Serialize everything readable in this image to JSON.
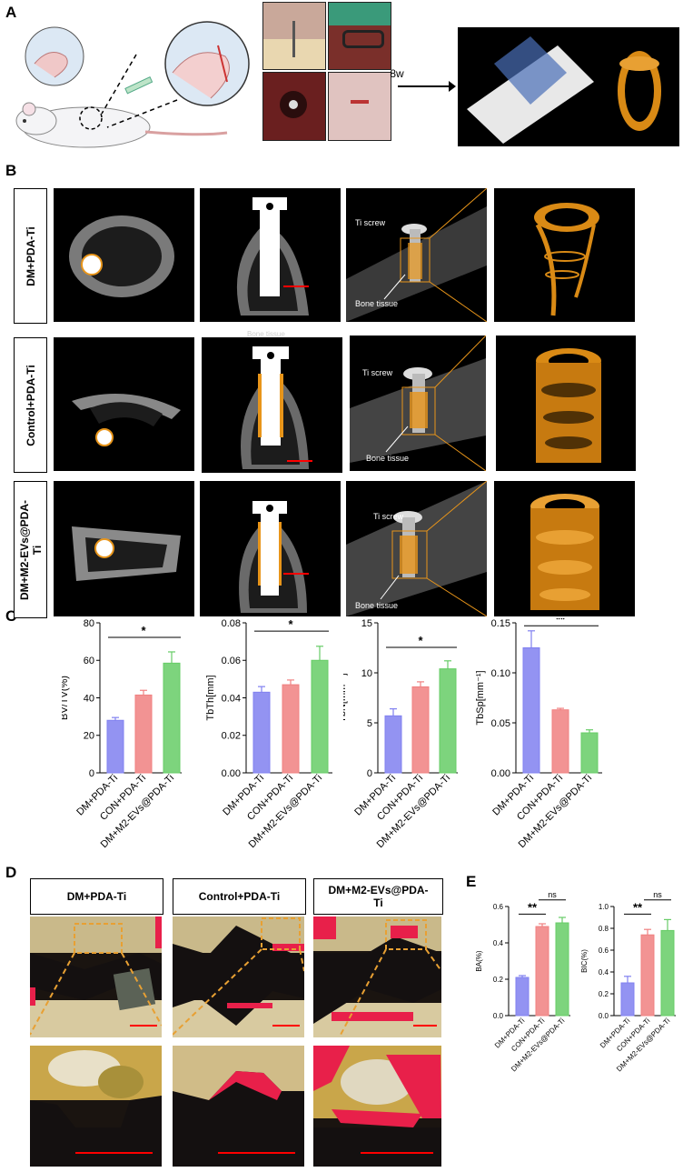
{
  "panels": {
    "a": "A",
    "b": "B",
    "c": "C",
    "d": "D",
    "e": "E"
  },
  "panel_a": {
    "time_label": "8w"
  },
  "panel_b": {
    "rows": [
      "DM+PDA-Ti",
      "Control+PDA-Ti",
      "DM+M2-EVs@PDA-Ti"
    ],
    "ti_screw_label": "Ti screw",
    "bone_tissue_label": "Bone tissue",
    "faint_label": "Bone tissue"
  },
  "panel_d": {
    "headers": [
      "DM+PDA-Ti",
      "Control+PDA-Ti",
      "DM+M2-EVs@PDA-Ti"
    ]
  },
  "colors": {
    "dm": "#8080f0",
    "con": "#f08080",
    "m2": "#66cc66",
    "bone_orange": "#e8951a",
    "scale_red": "#ff0000",
    "stain_red": "#e8204a"
  },
  "chart_data": [
    {
      "type": "bar",
      "panel": "C",
      "categories": [
        "DM+PDA-Ti",
        "CON+PDA-Ti",
        "DM+M2-EVs@PDA-Ti"
      ],
      "values": [
        28,
        41.5,
        58.5
      ],
      "errors": [
        1.5,
        2.5,
        6
      ],
      "ylabel": "BV/TV(%)",
      "ylim": [
        0,
        80
      ],
      "yticks": [
        "0",
        "20",
        "40",
        "60",
        "80"
      ],
      "significance": [
        {
          "from": 0,
          "to": 2,
          "label": "*"
        }
      ]
    },
    {
      "type": "bar",
      "panel": "C",
      "categories": [
        "DM+PDA-Ti",
        "CON+PDA-Ti",
        "DM+M2-EVs@PDA-Ti"
      ],
      "values": [
        0.043,
        0.047,
        0.06
      ],
      "errors": [
        0.003,
        0.0025,
        0.0075
      ],
      "ylabel": "TbTh[mm]",
      "ylim": [
        0,
        0.08
      ],
      "yticks": [
        "0.00",
        "0.02",
        "0.04",
        "0.06",
        "0.08"
      ],
      "significance": [
        {
          "from": 0,
          "to": 2,
          "label": "*"
        }
      ]
    },
    {
      "type": "bar",
      "panel": "C",
      "categories": [
        "DM+PDA-Ti",
        "CON+PDA-Ti",
        "DM+M2-EVs@PDA-Ti"
      ],
      "values": [
        5.7,
        8.6,
        10.4
      ],
      "errors": [
        0.7,
        0.5,
        0.8
      ],
      "ylabel": "TbN[mm⁻¹]",
      "ylim": [
        0,
        15
      ],
      "yticks": [
        "0",
        "5",
        "10",
        "15"
      ],
      "significance": [
        {
          "from": 0,
          "to": 2,
          "label": "*"
        }
      ]
    },
    {
      "type": "bar",
      "panel": "C",
      "categories": [
        "DM+PDA-Ti",
        "CON+PDA-Ti",
        "DM+M2-EVs@PDA-Ti"
      ],
      "values": [
        0.125,
        0.063,
        0.04
      ],
      "errors": [
        0.017,
        0.0015,
        0.003
      ],
      "ylabel": "TbSp[mm⁻¹]",
      "ylim": [
        0,
        0.15
      ],
      "yticks": [
        "0.00",
        "0.05",
        "0.10",
        "0.15"
      ],
      "significance": [
        {
          "from": 0,
          "to": 2,
          "label": "**"
        }
      ]
    },
    {
      "type": "bar",
      "panel": "E",
      "categories": [
        "DM+PDA-Ti",
        "CON+PDA-Ti",
        "DM+M2-EVs@PDA-Ti"
      ],
      "values": [
        0.21,
        0.49,
        0.51
      ],
      "errors": [
        0.01,
        0.015,
        0.03
      ],
      "ylabel": "BA(%)",
      "ylim": [
        0,
        0.6
      ],
      "yticks": [
        "0.0",
        "0.2",
        "0.4",
        "0.6"
      ],
      "significance": [
        {
          "from": 0,
          "to": 1,
          "label": "**"
        },
        {
          "from": 1,
          "to": 2,
          "label": "ns"
        }
      ]
    },
    {
      "type": "bar",
      "panel": "E",
      "categories": [
        "DM+PDA-Ti",
        "CON+PDA-Ti",
        "DM+M2-EVs@PDA-Ti"
      ],
      "values": [
        0.3,
        0.74,
        0.78
      ],
      "errors": [
        0.06,
        0.05,
        0.1
      ],
      "ylabel": "BIC(%)",
      "ylim": [
        0,
        1.0
      ],
      "yticks": [
        "0.0",
        "0.2",
        "0.4",
        "0.6",
        "0.8",
        "1.0"
      ],
      "significance": [
        {
          "from": 0,
          "to": 1,
          "label": "**"
        },
        {
          "from": 1,
          "to": 2,
          "label": "ns"
        }
      ]
    }
  ]
}
